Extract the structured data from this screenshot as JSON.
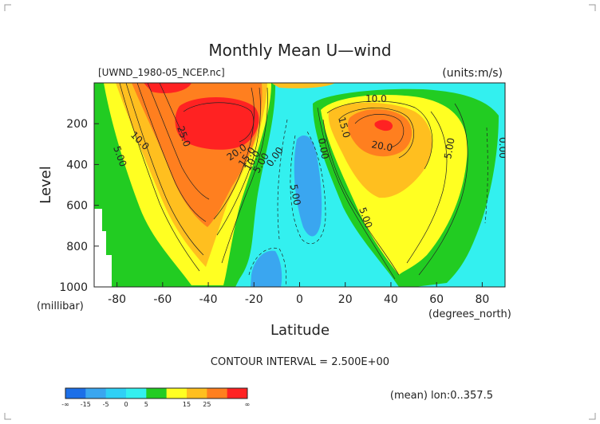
{
  "chart_data": {
    "type": "heatmap",
    "title": "Monthly Mean U—wind",
    "dataset_label": "[UWND_1980-05_NCEP.nc]",
    "units_label": "(units:m/s)",
    "xlabel": "Latitude",
    "x_unit_label": "(degrees_north)",
    "ylabel": "Level",
    "y_unit_label": "(millibar)",
    "xlim": [
      -90,
      90
    ],
    "ylim": [
      1000,
      0
    ],
    "x_ticks": [
      "-80",
      "-60",
      "-40",
      "-20",
      "0",
      "20",
      "40",
      "60",
      "80"
    ],
    "y_ticks": [
      "200",
      "400",
      "600",
      "800",
      "1000"
    ],
    "contour_interval_text": "CONTOUR INTERVAL = 2.500E+00",
    "footer_text": "(mean) lon:0..357.5",
    "contour_labels": [
      "10.0",
      "5.00",
      "25.0",
      "20.0",
      "15.0",
      "10.0",
      "5.00",
      "0.00",
      "5.00",
      "0.00",
      "10.0",
      "15.0",
      "20.0",
      "5.00",
      "5.00",
      "0.00"
    ],
    "colorbar": {
      "tick_labels": [
        "-∞",
        "-15",
        "-5",
        "0",
        "5",
        "15",
        "25",
        "∞"
      ],
      "colors": [
        "#1c6fe8",
        "#3aa6f0",
        "#2fd0f5",
        "#33f0ef",
        "#22cc22",
        "#ffff22",
        "#ffbf1f",
        "#ff7f1f",
        "#ff2222"
      ]
    },
    "jets": [
      {
        "name": "southern-hemisphere-jet",
        "lat": -38,
        "level": 180,
        "max_ms": 27.5
      },
      {
        "name": "northern-hemisphere-jet",
        "lat": 35,
        "level": 190,
        "max_ms": 25
      }
    ],
    "easterly_minimum": {
      "lat": 5,
      "level": 430,
      "min_ms": -7.5
    }
  }
}
